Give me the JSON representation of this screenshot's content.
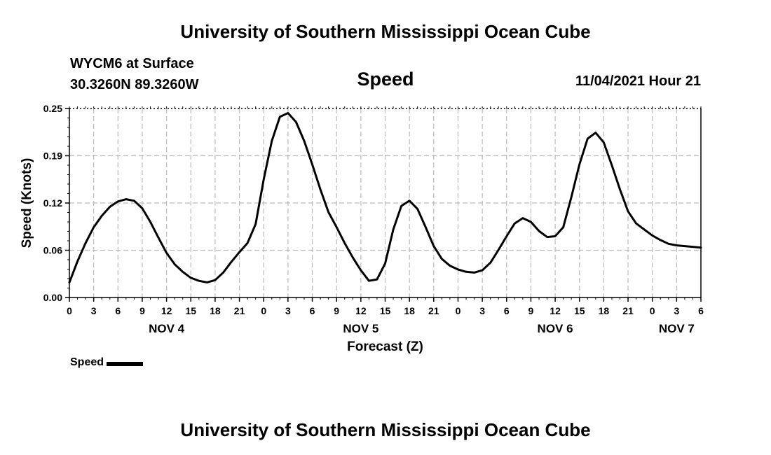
{
  "header": {
    "title": "University of Southern Mississippi Ocean Cube",
    "station": "WYCM6 at Surface",
    "coords": "30.3260N  89.3260W",
    "subtitle": "Speed",
    "datetime": "11/04/2021 Hour 21"
  },
  "footer": {
    "title": "University of Southern Mississippi Ocean Cube"
  },
  "legend": {
    "label": "Speed"
  },
  "chart_data": {
    "type": "line",
    "title": "Speed",
    "xlabel": "Forecast (Z)",
    "ylabel": "Speed (Knots)",
    "ylim": [
      0,
      0.25
    ],
    "xlim": [
      0,
      78
    ],
    "y_ticks": [
      "0.00",
      "0.06",
      "0.12",
      "0.19",
      "0.25"
    ],
    "x_tick_labels": [
      "0",
      "3",
      "6",
      "9",
      "12",
      "15",
      "18",
      "21",
      "0",
      "3",
      "6",
      "9",
      "12",
      "15",
      "18",
      "21",
      "0",
      "3",
      "6",
      "9",
      "12",
      "15",
      "18",
      "21",
      "0",
      "3",
      "6"
    ],
    "day_labels": [
      {
        "label": "NOV 4",
        "hour": 12
      },
      {
        "label": "NOV 5",
        "hour": 36
      },
      {
        "label": "NOV 6",
        "hour": 60
      },
      {
        "label": "NOV 7",
        "hour": 75
      }
    ],
    "grid": true,
    "series": [
      {
        "name": "Speed",
        "color": "#000000",
        "x": [
          0,
          1,
          2,
          3,
          4,
          5,
          6,
          7,
          8,
          9,
          10,
          11,
          12,
          13,
          14,
          15,
          16,
          17,
          18,
          19,
          20,
          21,
          22,
          23,
          24,
          25,
          26,
          27,
          28,
          29,
          30,
          31,
          32,
          33,
          34,
          35,
          36,
          37,
          38,
          39,
          40,
          41,
          42,
          43,
          44,
          45,
          46,
          47,
          48,
          49,
          50,
          51,
          52,
          53,
          54,
          55,
          56,
          57,
          58,
          59,
          60,
          61,
          62,
          63,
          64,
          65,
          66,
          67,
          68,
          69,
          70,
          71,
          72,
          73,
          74,
          75,
          76,
          77,
          78
        ],
        "values": [
          0.02,
          0.048,
          0.072,
          0.093,
          0.108,
          0.12,
          0.127,
          0.13,
          0.128,
          0.118,
          0.1,
          0.079,
          0.059,
          0.044,
          0.034,
          0.026,
          0.022,
          0.02,
          0.023,
          0.033,
          0.047,
          0.06,
          0.072,
          0.097,
          0.156,
          0.207,
          0.239,
          0.244,
          0.232,
          0.207,
          0.176,
          0.143,
          0.113,
          0.093,
          0.072,
          0.053,
          0.036,
          0.022,
          0.024,
          0.045,
          0.09,
          0.121,
          0.128,
          0.117,
          0.093,
          0.068,
          0.051,
          0.042,
          0.037,
          0.034,
          0.033,
          0.036,
          0.046,
          0.063,
          0.081,
          0.098,
          0.105,
          0.1,
          0.088,
          0.08,
          0.081,
          0.093,
          0.133,
          0.176,
          0.21,
          0.218,
          0.205,
          0.175,
          0.143,
          0.114,
          0.098,
          0.09,
          0.082,
          0.076,
          0.071,
          0.069,
          0.068,
          0.067,
          0.066
        ]
      }
    ]
  }
}
